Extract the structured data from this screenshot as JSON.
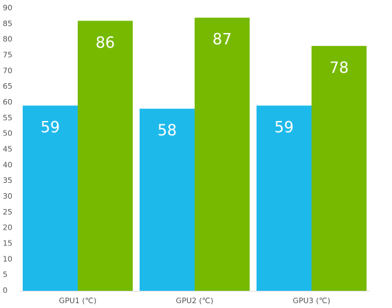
{
  "chart_data": {
    "type": "bar",
    "categories": [
      "GPU1 (℃)",
      "GPU2 (℃)",
      "GPU3 (℃)"
    ],
    "series": [
      {
        "color": "#1eb9eb",
        "values": [
          59,
          58,
          59
        ]
      },
      {
        "color": "#76b900",
        "values": [
          86,
          87,
          78
        ]
      }
    ],
    "ylim": [
      0,
      90
    ],
    "yticks": [
      0,
      5,
      10,
      15,
      20,
      25,
      30,
      35,
      40,
      45,
      50,
      55,
      60,
      65,
      70,
      75,
      80,
      85,
      90
    ],
    "grid": false
  }
}
